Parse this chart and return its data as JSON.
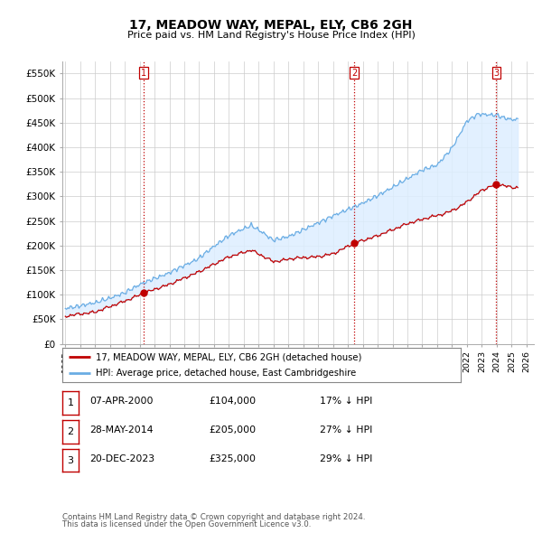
{
  "title": "17, MEADOW WAY, MEPAL, ELY, CB6 2GH",
  "subtitle": "Price paid vs. HM Land Registry's House Price Index (HPI)",
  "ylabel_ticks": [
    "£0",
    "£50K",
    "£100K",
    "£150K",
    "£200K",
    "£250K",
    "£300K",
    "£350K",
    "£400K",
    "£450K",
    "£500K",
    "£550K"
  ],
  "ytick_values": [
    0,
    50000,
    100000,
    150000,
    200000,
    250000,
    300000,
    350000,
    400000,
    450000,
    500000,
    550000
  ],
  "ylim": [
    0,
    575000
  ],
  "xlim_start": 1994.8,
  "xlim_end": 2026.5,
  "x_ticks": [
    1995,
    1996,
    1997,
    1998,
    1999,
    2000,
    2001,
    2002,
    2003,
    2004,
    2005,
    2006,
    2007,
    2008,
    2009,
    2010,
    2011,
    2012,
    2013,
    2014,
    2015,
    2016,
    2017,
    2018,
    2019,
    2020,
    2021,
    2022,
    2023,
    2024,
    2025,
    2026
  ],
  "sale_dates": [
    2000.27,
    2014.41,
    2023.97
  ],
  "sale_prices": [
    104000,
    205000,
    325000
  ],
  "sale_labels": [
    "1",
    "2",
    "3"
  ],
  "sale_info": [
    {
      "label": "1",
      "date": "07-APR-2000",
      "price": "£104,000",
      "pct": "17%",
      "dir": "↓"
    },
    {
      "label": "2",
      "date": "28-MAY-2014",
      "price": "£205,000",
      "pct": "27%",
      "dir": "↓"
    },
    {
      "label": "3",
      "date": "20-DEC-2023",
      "price": "£325,000",
      "pct": "29%",
      "dir": "↓"
    }
  ],
  "hpi_color": "#6aade4",
  "sale_line_color": "#c00000",
  "vline_color": "#c00000",
  "fill_color": "#ddeeff",
  "grid_color": "#cccccc",
  "bg_color": "#ffffff",
  "plot_bg_color": "#ffffff",
  "legend_label_sale": "17, MEADOW WAY, MEPAL, ELY, CB6 2GH (detached house)",
  "legend_label_hpi": "HPI: Average price, detached house, East Cambridgeshire",
  "footnote1": "Contains HM Land Registry data © Crown copyright and database right 2024.",
  "footnote2": "This data is licensed under the Open Government Licence v3.0."
}
